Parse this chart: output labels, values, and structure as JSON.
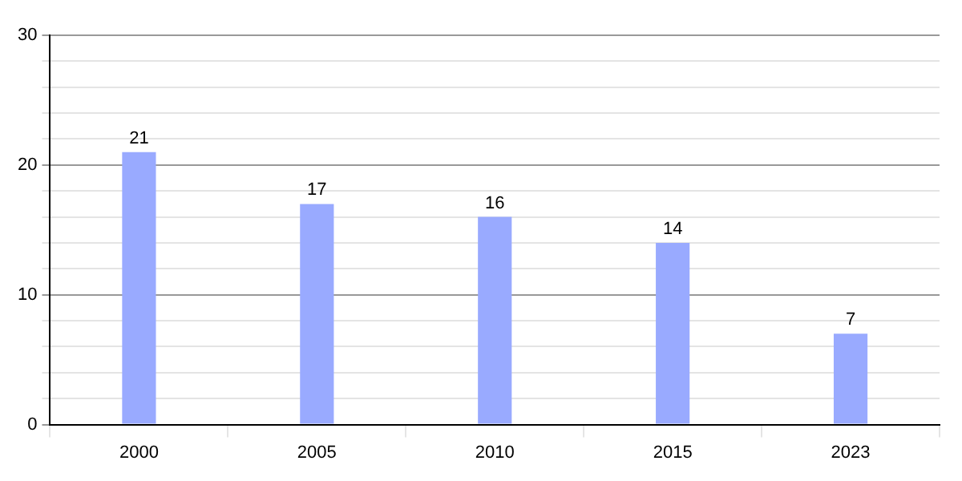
{
  "chart_data": {
    "type": "bar",
    "categories": [
      "2000",
      "2005",
      "2010",
      "2015",
      "2023"
    ],
    "values": [
      21,
      17,
      16,
      14,
      7
    ],
    "color": "#99aaff",
    "data_labels": true,
    "grid": true,
    "legend": false,
    "ylim": [
      0,
      30
    ],
    "yticks": [
      0,
      {
        "value": 2,
        "label": null
      },
      {
        "value": 4,
        "label": null
      },
      {
        "value": 6,
        "label": null
      },
      {
        "value": 8,
        "label": null
      },
      10,
      {
        "value": 12,
        "label": null
      },
      {
        "value": 14,
        "label": null
      },
      {
        "value": 16,
        "label": null
      },
      {
        "value": 18,
        "label": null
      },
      20,
      {
        "value": 22,
        "label": null
      },
      {
        "value": 24,
        "label": null
      },
      {
        "value": 26,
        "label": null
      },
      {
        "value": 28,
        "label": null
      },
      30
    ]
  }
}
